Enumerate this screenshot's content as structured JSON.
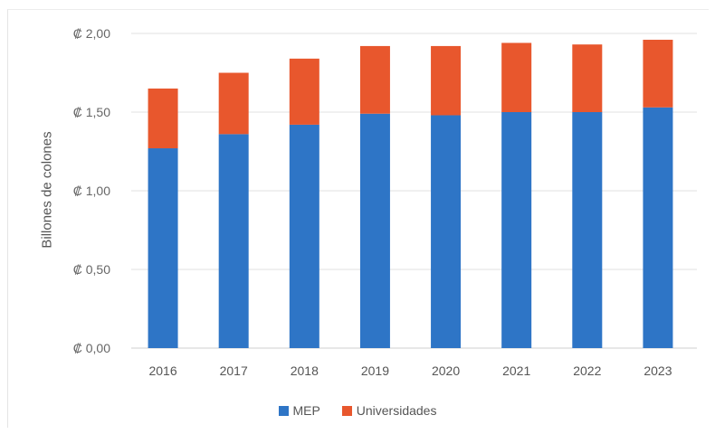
{
  "chart_data": {
    "type": "bar",
    "stacked": true,
    "categories": [
      "2016",
      "2017",
      "2018",
      "2019",
      "2020",
      "2021",
      "2022",
      "2023"
    ],
    "series": [
      {
        "name": "MEP",
        "color": "#2e75c6",
        "values": [
          1.27,
          1.36,
          1.42,
          1.49,
          1.48,
          1.5,
          1.5,
          1.53
        ]
      },
      {
        "name": "Universidades",
        "color": "#e8572d",
        "values": [
          0.38,
          0.39,
          0.42,
          0.43,
          0.44,
          0.44,
          0.43,
          0.43
        ]
      }
    ],
    "ylabel": "Billones de colones",
    "yticks": [
      "₡ 0,00",
      "₡ 0,50",
      "₡ 1,00",
      "₡ 1,50",
      "₡ 2,00"
    ],
    "ytick_values": [
      0,
      0.5,
      1.0,
      1.5,
      2.0
    ],
    "ylim": [
      0,
      2.0
    ],
    "grid": true,
    "legend_position": "bottom"
  }
}
